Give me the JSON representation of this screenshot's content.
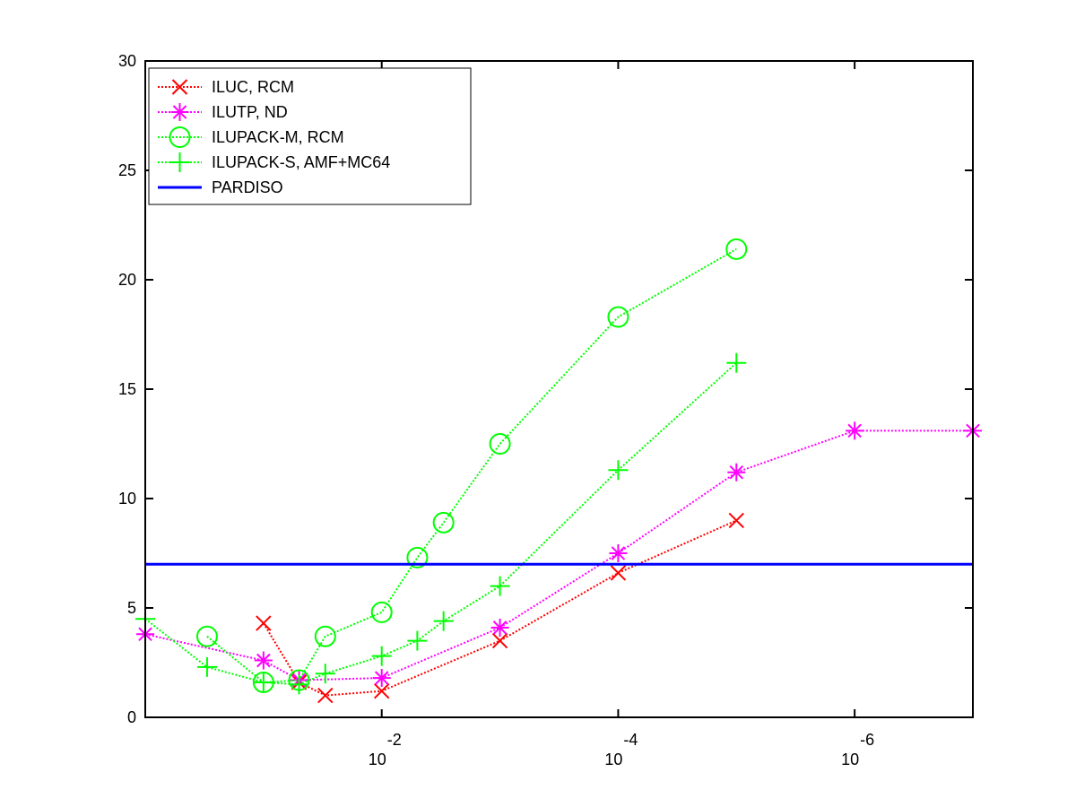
{
  "chart_data": {
    "type": "line",
    "title": "",
    "xlabel": "",
    "ylabel": "",
    "x_scale": "log-reversed",
    "xlim": [
      1,
      1e-07
    ],
    "ylim": [
      0,
      30
    ],
    "y_ticks": [
      0,
      5,
      10,
      15,
      20,
      25,
      30
    ],
    "y_tick_labels": [
      "0",
      "5",
      "10",
      "15",
      "20",
      "25",
      "30"
    ],
    "x_ticks": [
      0.01,
      0.0001,
      1e-06
    ],
    "x_tick_labels": [
      {
        "base": "10",
        "exponent": "-2"
      },
      {
        "base": "10",
        "exponent": "-4"
      },
      {
        "base": "10",
        "exponent": "-6"
      }
    ],
    "grid": false,
    "legend_position": "top-left",
    "series": [
      {
        "name": "ILUC, RCM",
        "color": "#ff0000",
        "marker": "x",
        "line_style": "dotted",
        "x": [
          0.1,
          0.05,
          0.03,
          0.01,
          0.001,
          0.0001,
          1e-05
        ],
        "y": [
          4.3,
          1.6,
          1.0,
          1.2,
          3.5,
          6.6,
          9.0
        ]
      },
      {
        "name": "ILUTP,  ND",
        "color": "#ff00ff",
        "marker": "asterisk",
        "line_style": "dotted",
        "x": [
          1,
          0.1,
          0.05,
          0.01,
          0.001,
          0.0001,
          1e-05,
          1e-06,
          1e-07
        ],
        "y": [
          3.8,
          2.6,
          1.7,
          1.8,
          4.1,
          7.5,
          11.2,
          13.1,
          13.1
        ]
      },
      {
        "name": "ILUPACK-M, RCM",
        "color": "#00ff00",
        "marker": "circle",
        "line_style": "dotted",
        "x": [
          0.3,
          0.1,
          0.05,
          0.03,
          0.01,
          0.005,
          0.003,
          0.001,
          0.0001,
          1e-05
        ],
        "y": [
          3.7,
          1.6,
          1.7,
          3.7,
          4.8,
          7.3,
          8.9,
          12.5,
          18.3,
          21.4
        ]
      },
      {
        "name": "ILUPACK-S, AMF+MC64",
        "color": "#00ff00",
        "marker": "plus",
        "line_style": "dotted",
        "x": [
          1,
          0.3,
          0.1,
          0.05,
          0.03,
          0.01,
          0.005,
          0.003,
          0.001,
          0.0001,
          1e-05
        ],
        "y": [
          4.5,
          2.3,
          1.6,
          1.5,
          2.0,
          2.8,
          3.5,
          4.4,
          6.0,
          11.3,
          16.2
        ]
      },
      {
        "name": "PARDISO",
        "color": "#0000ff",
        "marker": "none",
        "line_style": "solid",
        "x": [
          1,
          1e-07
        ],
        "y": [
          7.0,
          7.0
        ]
      }
    ]
  }
}
